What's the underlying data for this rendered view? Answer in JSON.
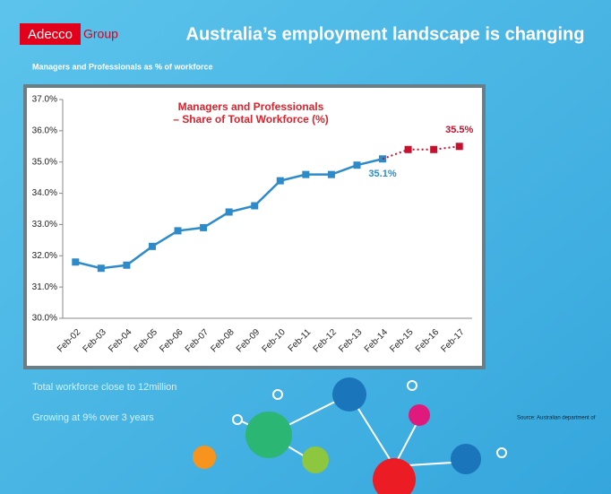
{
  "header": {
    "logo": "Adecco",
    "logo_suffix": "Group",
    "title": "Australia’s employment landscape is changing",
    "subtitle": "Managers and Professionals as  % of workforce"
  },
  "chart_data": {
    "type": "line",
    "title": [
      "Managers and Professionals",
      "– Share of Total Workforce (%)"
    ],
    "categories": [
      "Feb-02",
      "Feb-03",
      "Feb-04",
      "Feb-05",
      "Feb-06",
      "Feb-07",
      "Feb-08",
      "Feb-09",
      "Feb-10",
      "Feb-11",
      "Feb-12",
      "Feb-13",
      "Feb-14",
      "Feb-15",
      "Feb-16",
      "Feb-17"
    ],
    "series": [
      {
        "color": "#2e8bc9",
        "line_style": "solid",
        "values": [
          31.8,
          31.6,
          31.7,
          32.3,
          32.8,
          32.9,
          33.4,
          33.6,
          34.4,
          34.6,
          34.6,
          34.9,
          35.1,
          null,
          null,
          null
        ],
        "value_labels": [
          null,
          null,
          null,
          null,
          null,
          null,
          null,
          null,
          null,
          null,
          null,
          null,
          "35.1%",
          null,
          null,
          null
        ]
      },
      {
        "color": "#c8102e",
        "line_style": "dotted",
        "values": [
          null,
          null,
          null,
          null,
          null,
          null,
          null,
          null,
          null,
          null,
          null,
          null,
          null,
          35.4,
          35.4,
          35.5
        ],
        "value_labels": [
          null,
          null,
          null,
          null,
          null,
          null,
          null,
          null,
          null,
          null,
          null,
          null,
          null,
          null,
          null,
          "35.5%"
        ]
      }
    ],
    "ylim": [
      30,
      37
    ],
    "yticks": [
      {
        "value": 30,
        "label": "30.0%"
      },
      {
        "value": 31,
        "label": "31.0%"
      },
      {
        "value": 32,
        "label": "32.0%"
      },
      {
        "value": 33,
        "label": "33.0%"
      },
      {
        "value": 34,
        "label": "34.0%"
      },
      {
        "value": 35,
        "label": "35.0%"
      },
      {
        "value": 36,
        "label": "36.0%"
      },
      {
        "value": 37,
        "label": "37.0%"
      }
    ],
    "grid": false
  },
  "bullets": [
    "Total workforce close to 12million",
    "Growing at 9% over 3 years"
  ],
  "source": "Source: Australian department of"
}
